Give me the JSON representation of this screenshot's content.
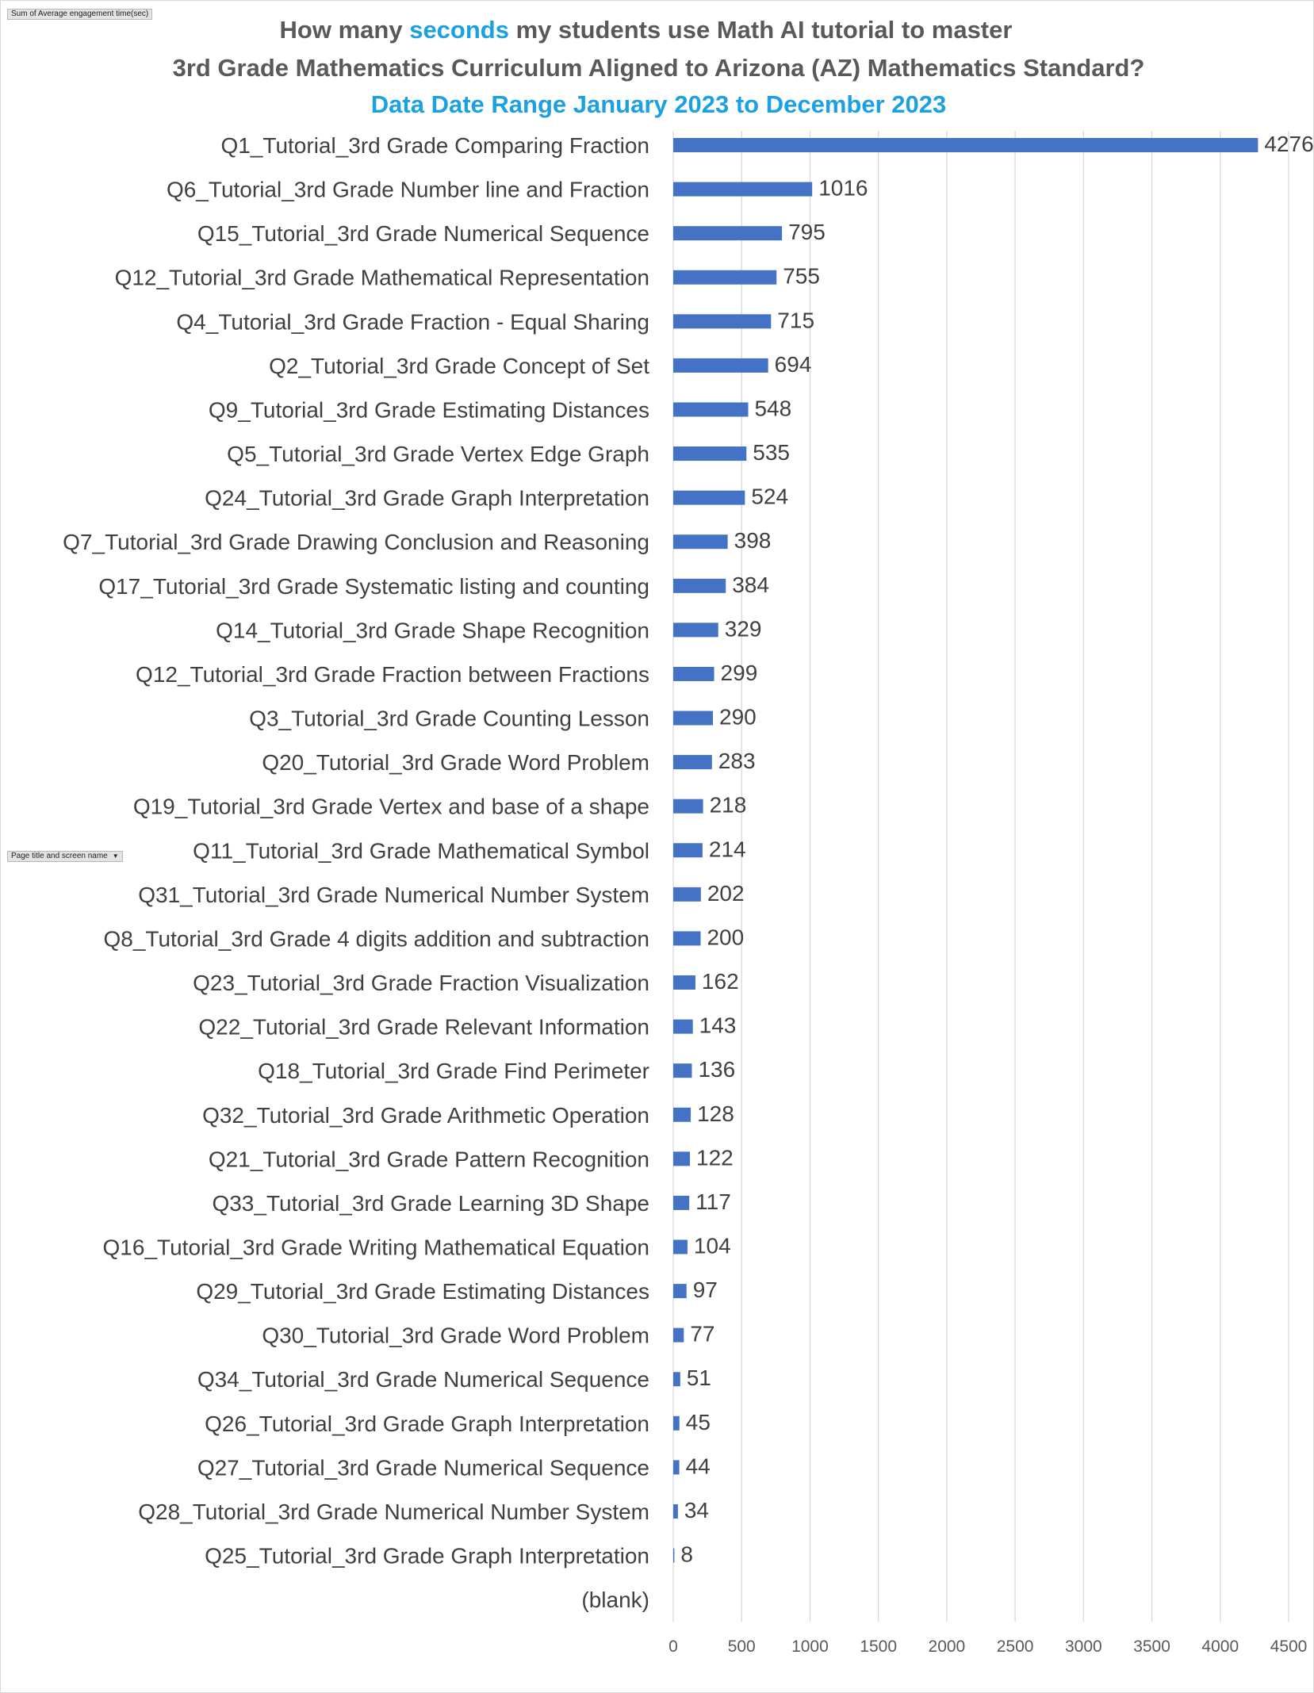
{
  "filter_buttons": {
    "values_field": "Sum of Average engagement time(sec)",
    "rows_field": "Page title and screen name",
    "rows_field_icon": "dropdown-arrow-icon"
  },
  "title": {
    "line1_prefix": "How many ",
    "line1_accent": "seconds",
    "line1_suffix": " my students use Math AI tutorial to master",
    "line2": "3rd Grade Mathematics Curriculum Aligned to Arizona (AZ) Mathematics Standard?",
    "line3": "Data Date Range January 2023 to December 2023"
  },
  "colors": {
    "bar": "#4472c4",
    "accent": "#1ba1e2",
    "title": "#595959",
    "gridline": "#d9d9d9"
  },
  "chart_data": {
    "type": "bar",
    "orientation": "horizontal",
    "xlim": [
      0,
      4500
    ],
    "x_ticks": [
      0,
      500,
      1000,
      1500,
      2000,
      2500,
      3000,
      3500,
      4000,
      4500
    ],
    "grid": "vertical",
    "data_labels": true,
    "categories": [
      "Q1_Tutorial_3rd Grade Comparing Fraction",
      "Q6_Tutorial_3rd Grade Number line and Fraction",
      "Q15_Tutorial_3rd Grade Numerical Sequence",
      "Q12_Tutorial_3rd Grade Mathematical Representation",
      "Q4_Tutorial_3rd Grade Fraction - Equal Sharing",
      "Q2_Tutorial_3rd Grade Concept of Set",
      "Q9_Tutorial_3rd Grade Estimating Distances",
      "Q5_Tutorial_3rd Grade Vertex Edge Graph",
      "Q24_Tutorial_3rd Grade Graph Interpretation",
      "Q7_Tutorial_3rd Grade Drawing Conclusion and Reasoning",
      "Q17_Tutorial_3rd Grade Systematic listing and counting",
      "Q14_Tutorial_3rd Grade Shape Recognition",
      "Q12_Tutorial_3rd Grade Fraction between Fractions",
      "Q3_Tutorial_3rd Grade Counting Lesson",
      "Q20_Tutorial_3rd Grade Word Problem",
      "Q19_Tutorial_3rd Grade Vertex and base of a shape",
      "Q11_Tutorial_3rd Grade Mathematical Symbol",
      "Q31_Tutorial_3rd Grade Numerical Number System",
      "Q8_Tutorial_3rd Grade 4 digits addition and subtraction",
      "Q23_Tutorial_3rd Grade Fraction Visualization",
      "Q22_Tutorial_3rd Grade Relevant Information",
      "Q18_Tutorial_3rd Grade Find Perimeter",
      "Q32_Tutorial_3rd Grade Arithmetic Operation",
      "Q21_Tutorial_3rd Grade Pattern Recognition",
      "Q33_Tutorial_3rd Grade Learning 3D Shape",
      "Q16_Tutorial_3rd Grade Writing Mathematical Equation",
      "Q29_Tutorial_3rd Grade Estimating Distances",
      "Q30_Tutorial_3rd Grade Word Problem",
      "Q34_Tutorial_3rd Grade Numerical Sequence",
      "Q26_Tutorial_3rd Grade Graph Interpretation",
      "Q27_Tutorial_3rd Grade Numerical Sequence",
      "Q28_Tutorial_3rd Grade Numerical Number System",
      "Q25_Tutorial_3rd Grade Graph Interpretation",
      "(blank)"
    ],
    "values": [
      4276,
      1016,
      795,
      755,
      715,
      694,
      548,
      535,
      524,
      398,
      384,
      329,
      299,
      290,
      283,
      218,
      214,
      202,
      200,
      162,
      143,
      136,
      128,
      122,
      117,
      104,
      97,
      77,
      51,
      45,
      44,
      34,
      8,
      null
    ]
  }
}
